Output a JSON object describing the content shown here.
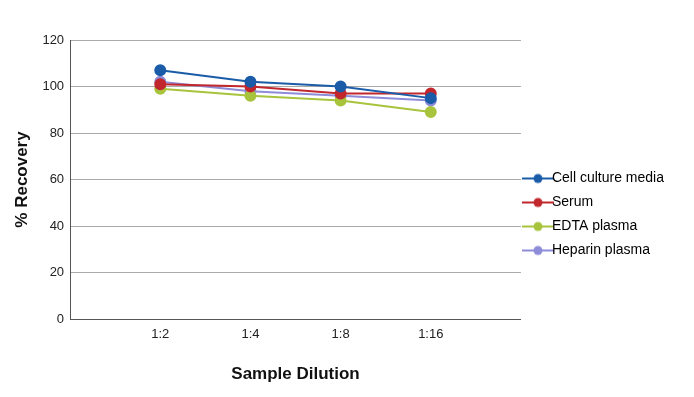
{
  "chart_data": {
    "type": "line",
    "x_label": "Sample Dilution",
    "y_label": "% Recovery",
    "categories": [
      "1:2",
      "1:4",
      "1:8",
      "1:16"
    ],
    "series": [
      {
        "name": "Cell culture media",
        "color": "#1a5ca8",
        "values": [
          107,
          102,
          100,
          95
        ],
        "marker": "circle"
      },
      {
        "name": "Serum",
        "color": "#c1272d",
        "values": [
          101,
          100,
          97,
          97
        ],
        "marker": "circle"
      },
      {
        "name": "EDTA plasma",
        "color": "#a7c43c",
        "values": [
          99,
          96,
          94,
          89
        ],
        "marker": "circle"
      },
      {
        "name": "Heparin plasma",
        "color": "#8e8cd8",
        "values": [
          102,
          98,
          96,
          94
        ],
        "marker": "circle"
      }
    ],
    "ylim": [
      0,
      120
    ],
    "yticks": [
      0,
      20,
      40,
      60,
      80,
      100,
      120
    ],
    "grid": true,
    "legend": "right"
  }
}
